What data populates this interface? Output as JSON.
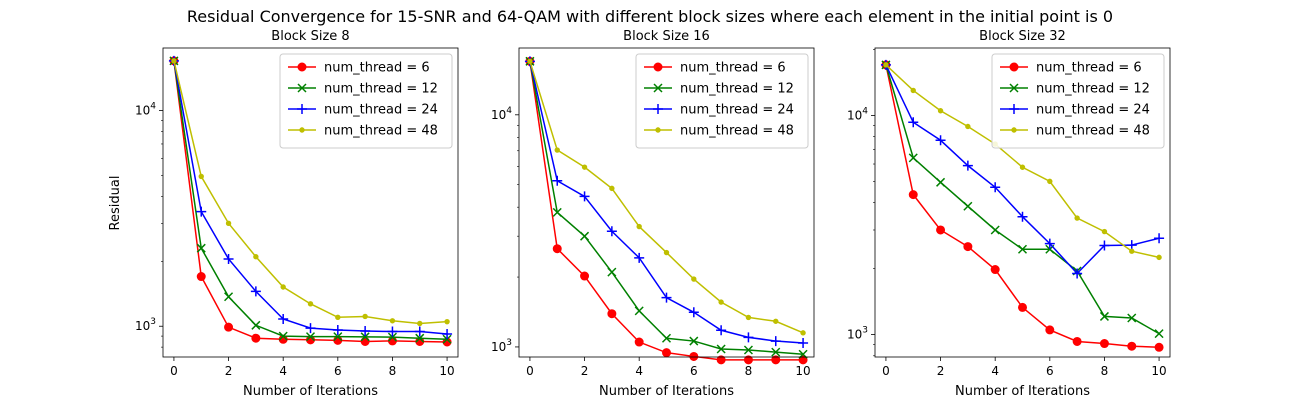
{
  "figure": {
    "title": "Residual Convergence for 15-SNR and 64-QAM with different block sizes where each element in the initial point is 0",
    "ylabel": "Residual",
    "xlabel": "Number of Iterations"
  },
  "chart_data": [
    {
      "type": "line",
      "title": "Block Size 8",
      "xlabel": "Number of Iterations",
      "ylabel": "Residual",
      "yscale": "log",
      "xlim": [
        -0.4,
        10.4
      ],
      "ylim": [
        720,
        19500
      ],
      "xticks": [
        0,
        2,
        4,
        6,
        8,
        10
      ],
      "x": [
        0,
        1,
        2,
        3,
        4,
        5,
        6,
        7,
        8,
        9,
        10
      ],
      "legend": "top-right",
      "series": [
        {
          "name": "num_thread = 6",
          "color": "#ff0000",
          "marker": "o",
          "values": [
            17000,
            1700,
            990,
            880,
            870,
            865,
            860,
            850,
            855,
            850,
            845
          ]
        },
        {
          "name": "num_thread = 12",
          "color": "#008000",
          "marker": "x",
          "values": [
            17000,
            2300,
            1370,
            1010,
            900,
            895,
            895,
            893,
            890,
            880,
            870
          ]
        },
        {
          "name": "num_thread = 24",
          "color": "#0000ff",
          "marker": "+",
          "values": [
            17000,
            3400,
            2050,
            1450,
            1080,
            980,
            960,
            950,
            945,
            945,
            920
          ]
        },
        {
          "name": "num_thread = 48",
          "color": "#bfbf00",
          "marker": ".",
          "values": [
            17000,
            4950,
            3000,
            2100,
            1520,
            1270,
            1100,
            1110,
            1060,
            1030,
            1050
          ]
        }
      ]
    },
    {
      "type": "line",
      "title": "Block Size 16",
      "xlabel": "Number of Iterations",
      "ylabel": "",
      "yscale": "log",
      "xlim": [
        -0.4,
        10.4
      ],
      "ylim": [
        905,
        19400
      ],
      "xticks": [
        0,
        2,
        4,
        6,
        8,
        10
      ],
      "x": [
        0,
        1,
        2,
        3,
        4,
        5,
        6,
        7,
        8,
        9,
        10
      ],
      "legend": "top-right",
      "series": [
        {
          "name": "num_thread = 6",
          "color": "#ff0000",
          "marker": "o",
          "values": [
            17000,
            2650,
            2020,
            1390,
            1050,
            945,
            910,
            880,
            880,
            880,
            880
          ]
        },
        {
          "name": "num_thread = 12",
          "color": "#008000",
          "marker": "x",
          "values": [
            17000,
            3800,
            3000,
            2100,
            1430,
            1090,
            1060,
            980,
            970,
            950,
            930
          ]
        },
        {
          "name": "num_thread = 24",
          "color": "#0000ff",
          "marker": "+",
          "values": [
            17000,
            5200,
            4450,
            3150,
            2420,
            1630,
            1410,
            1180,
            1100,
            1060,
            1040
          ]
        },
        {
          "name": "num_thread = 48",
          "color": "#bfbf00",
          "marker": ".",
          "values": [
            17000,
            7050,
            5950,
            4820,
            3300,
            2550,
            1960,
            1560,
            1340,
            1290,
            1150
          ]
        }
      ]
    },
    {
      "type": "line",
      "title": "Block Size 32",
      "xlabel": "Number of Iterations",
      "ylabel": "",
      "yscale": "log",
      "xlim": [
        -0.4,
        10.4
      ],
      "ylim": [
        790,
        20300
      ],
      "xticks": [
        0,
        2,
        4,
        6,
        8,
        10
      ],
      "x": [
        0,
        1,
        2,
        3,
        4,
        5,
        6,
        7,
        8,
        9,
        10
      ],
      "legend": "top-right",
      "series": [
        {
          "name": "num_thread = 6",
          "color": "#ff0000",
          "marker": "o",
          "values": [
            17000,
            4350,
            3000,
            2520,
            1980,
            1330,
            1050,
            930,
            910,
            885,
            875
          ]
        },
        {
          "name": "num_thread = 12",
          "color": "#008000",
          "marker": "x",
          "values": [
            17000,
            6400,
            4950,
            3850,
            3000,
            2450,
            2450,
            1950,
            1210,
            1190,
            1010
          ]
        },
        {
          "name": "num_thread = 24",
          "color": "#0000ff",
          "marker": "+",
          "values": [
            17000,
            9300,
            7700,
            5900,
            4700,
            3450,
            2600,
            1900,
            2550,
            2560,
            2750
          ]
        },
        {
          "name": "num_thread = 48",
          "color": "#bfbf00",
          "marker": ".",
          "values": [
            17000,
            13000,
            10500,
            8900,
            7400,
            5800,
            5000,
            3400,
            2950,
            2400,
            2250
          ]
        }
      ]
    }
  ]
}
